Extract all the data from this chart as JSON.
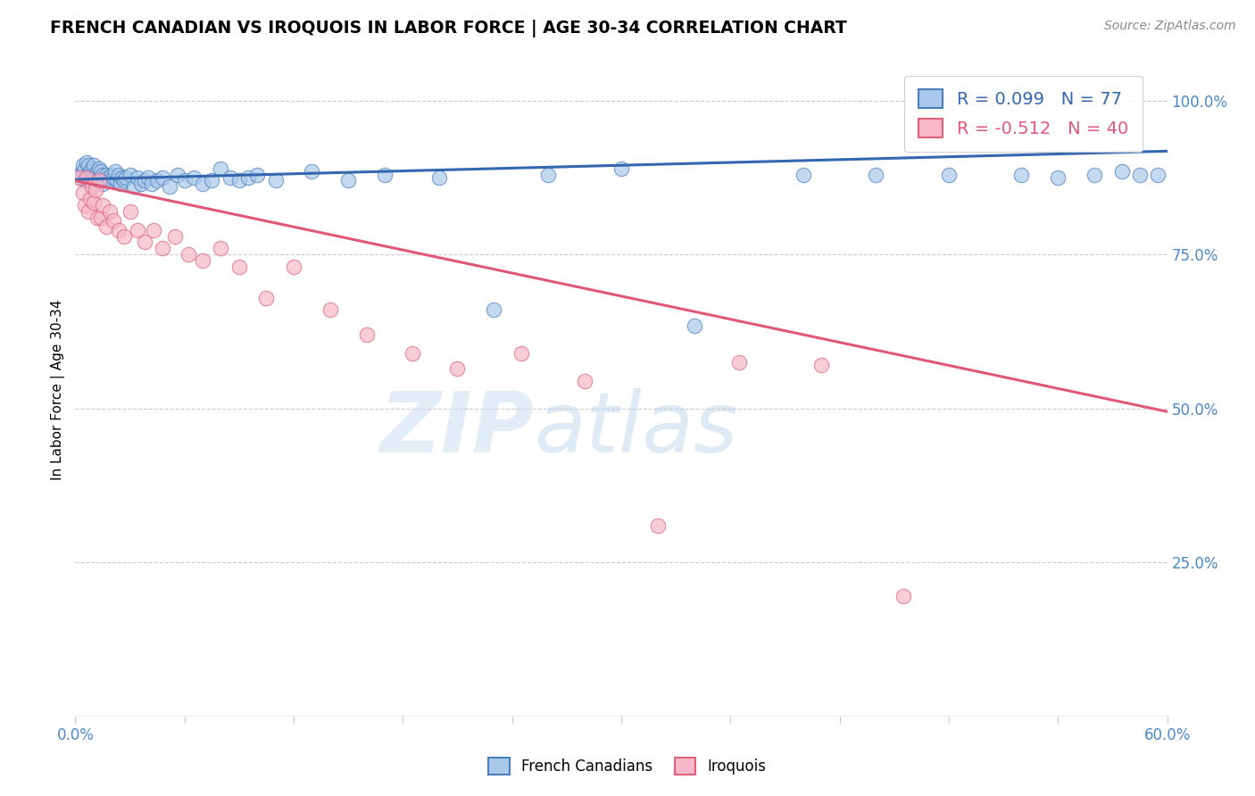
{
  "title": "FRENCH CANADIAN VS IROQUOIS IN LABOR FORCE | AGE 30-34 CORRELATION CHART",
  "source_text": "Source: ZipAtlas.com",
  "ylabel": "In Labor Force | Age 30-34",
  "xlim": [
    0.0,
    0.6
  ],
  "ylim": [
    0.0,
    1.06
  ],
  "xticks": [
    0.0,
    0.06,
    0.12,
    0.18,
    0.24,
    0.3,
    0.36,
    0.42,
    0.48,
    0.54,
    0.6
  ],
  "xticklabels": [
    "0.0%",
    "",
    "",
    "",
    "",
    "",
    "",
    "",
    "",
    "",
    "60.0%"
  ],
  "yticks_right": [
    0.0,
    0.25,
    0.5,
    0.75,
    1.0
  ],
  "ytick_labels_right": [
    "",
    "25.0%",
    "50.0%",
    "75.0%",
    "100.0%"
  ],
  "blue_color": "#aac9ea",
  "pink_color": "#f7b8c8",
  "blue_edge_color": "#4a7fbf",
  "pink_edge_color": "#e0607a",
  "blue_line_color": "#3368b0",
  "pink_line_color": "#e05878",
  "R_blue": 0.099,
  "N_blue": 77,
  "R_pink": -0.512,
  "N_pink": 40,
  "watermark_zip": "ZIP",
  "watermark_atlas": "atlas",
  "background_color": "#ffffff",
  "blue_scatter_x": [
    0.002,
    0.003,
    0.004,
    0.004,
    0.005,
    0.005,
    0.006,
    0.006,
    0.007,
    0.007,
    0.008,
    0.008,
    0.009,
    0.009,
    0.01,
    0.01,
    0.011,
    0.011,
    0.012,
    0.012,
    0.013,
    0.013,
    0.014,
    0.014,
    0.015,
    0.015,
    0.016,
    0.017,
    0.018,
    0.019,
    0.02,
    0.021,
    0.022,
    0.023,
    0.024,
    0.025,
    0.026,
    0.027,
    0.028,
    0.03,
    0.032,
    0.034,
    0.036,
    0.038,
    0.04,
    0.042,
    0.045,
    0.048,
    0.052,
    0.056,
    0.06,
    0.065,
    0.07,
    0.075,
    0.08,
    0.085,
    0.09,
    0.095,
    0.1,
    0.11,
    0.13,
    0.15,
    0.17,
    0.2,
    0.23,
    0.26,
    0.3,
    0.34,
    0.4,
    0.44,
    0.48,
    0.52,
    0.54,
    0.56,
    0.575,
    0.585,
    0.595
  ],
  "blue_scatter_y": [
    0.88,
    0.875,
    0.885,
    0.895,
    0.87,
    0.89,
    0.88,
    0.9,
    0.875,
    0.895,
    0.87,
    0.885,
    0.89,
    0.88,
    0.875,
    0.895,
    0.865,
    0.88,
    0.885,
    0.87,
    0.89,
    0.875,
    0.87,
    0.885,
    0.88,
    0.865,
    0.87,
    0.88,
    0.875,
    0.87,
    0.88,
    0.875,
    0.885,
    0.87,
    0.88,
    0.865,
    0.875,
    0.87,
    0.875,
    0.88,
    0.86,
    0.875,
    0.865,
    0.87,
    0.875,
    0.865,
    0.87,
    0.875,
    0.86,
    0.88,
    0.87,
    0.875,
    0.865,
    0.87,
    0.89,
    0.875,
    0.87,
    0.875,
    0.88,
    0.87,
    0.885,
    0.87,
    0.88,
    0.875,
    0.66,
    0.88,
    0.89,
    0.635,
    0.88,
    0.88,
    0.88,
    0.88,
    0.875,
    0.88,
    0.885,
    0.88,
    0.88
  ],
  "pink_scatter_x": [
    0.002,
    0.004,
    0.005,
    0.006,
    0.007,
    0.008,
    0.009,
    0.01,
    0.011,
    0.012,
    0.013,
    0.014,
    0.015,
    0.017,
    0.019,
    0.021,
    0.024,
    0.027,
    0.03,
    0.034,
    0.038,
    0.043,
    0.048,
    0.055,
    0.062,
    0.07,
    0.08,
    0.09,
    0.105,
    0.12,
    0.14,
    0.16,
    0.185,
    0.21,
    0.245,
    0.28,
    0.32,
    0.365,
    0.41,
    0.455
  ],
  "pink_scatter_y": [
    0.875,
    0.85,
    0.83,
    0.875,
    0.82,
    0.84,
    0.86,
    0.835,
    0.855,
    0.81,
    0.87,
    0.81,
    0.83,
    0.795,
    0.82,
    0.805,
    0.79,
    0.78,
    0.82,
    0.79,
    0.77,
    0.79,
    0.76,
    0.78,
    0.75,
    0.74,
    0.76,
    0.73,
    0.68,
    0.73,
    0.66,
    0.62,
    0.59,
    0.565,
    0.59,
    0.545,
    0.31,
    0.575,
    0.57,
    0.195
  ],
  "blue_trend_y0": 0.872,
  "blue_trend_y1": 0.918,
  "pink_trend_y0": 0.87,
  "pink_trend_y1": 0.495
}
